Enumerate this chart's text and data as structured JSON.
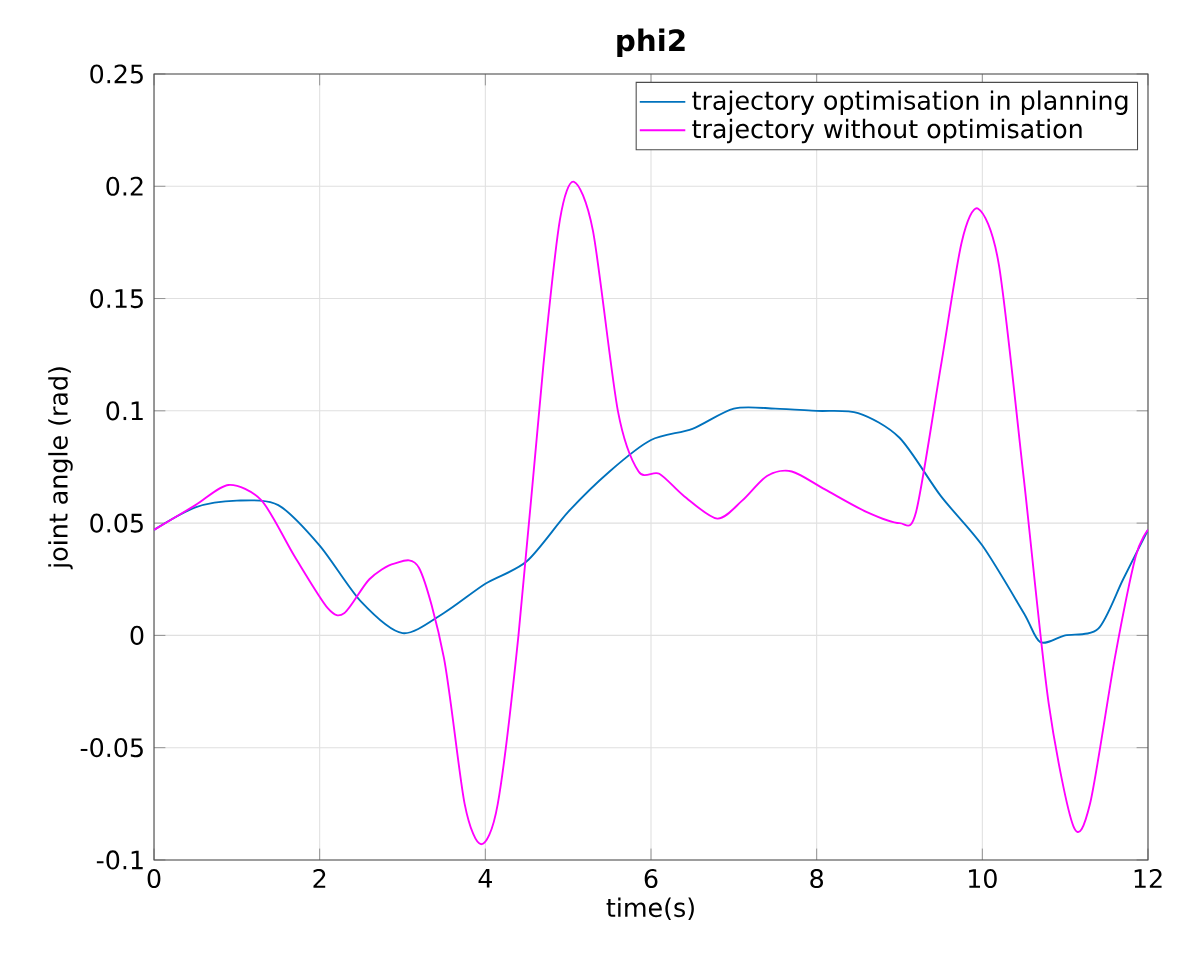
{
  "chart_data": {
    "type": "line",
    "title": "phi2",
    "xlabel": "time(s)",
    "ylabel": "joint angle (rad)",
    "xlim": [
      0,
      12
    ],
    "ylim": [
      -0.1,
      0.25
    ],
    "xticks": [
      0,
      2,
      4,
      6,
      8,
      10,
      12
    ],
    "yticks": [
      -0.1,
      -0.05,
      0,
      0.05,
      0.1,
      0.15,
      0.2,
      0.25
    ],
    "grid": true,
    "legend": "top right",
    "series": [
      {
        "name": "trajectory optimisation in planning",
        "color": "#0072bd",
        "x": [
          0,
          0.5,
          1.0,
          1.5,
          2.0,
          2.5,
          3.0,
          3.5,
          4.0,
          4.5,
          5.0,
          5.5,
          6.0,
          6.5,
          7.0,
          7.5,
          8.0,
          8.5,
          9.0,
          9.5,
          10.0,
          10.5,
          10.7,
          11.0,
          11.4,
          11.7,
          12
        ],
        "values": [
          0.047,
          0.057,
          0.06,
          0.058,
          0.04,
          0.015,
          0.001,
          0.01,
          0.023,
          0.033,
          0.055,
          0.073,
          0.087,
          0.092,
          0.101,
          0.101,
          0.1,
          0.099,
          0.088,
          0.062,
          0.04,
          0.01,
          -0.003,
          0.0,
          0.003,
          0.025,
          0.047
        ]
      },
      {
        "name": "trajectory without optimisation",
        "color": "#ff00ff",
        "x": [
          0,
          0.5,
          0.9,
          1.3,
          1.7,
          2.1,
          2.3,
          2.6,
          2.9,
          3.2,
          3.5,
          3.75,
          3.95,
          4.15,
          4.4,
          4.7,
          4.9,
          5.07,
          5.3,
          5.6,
          5.85,
          6.1,
          6.4,
          6.8,
          7.1,
          7.4,
          7.7,
          8.1,
          8.6,
          9.0,
          9.2,
          9.5,
          9.75,
          9.95,
          10.2,
          10.5,
          10.8,
          11.1,
          11.3,
          11.6,
          11.85,
          12
        ],
        "values": [
          0.047,
          0.058,
          0.067,
          0.06,
          0.035,
          0.012,
          0.01,
          0.025,
          0.032,
          0.03,
          -0.01,
          -0.075,
          -0.093,
          -0.075,
          0.0,
          0.12,
          0.185,
          0.202,
          0.18,
          0.1,
          0.073,
          0.072,
          0.062,
          0.052,
          0.06,
          0.071,
          0.073,
          0.065,
          0.055,
          0.05,
          0.055,
          0.12,
          0.175,
          0.19,
          0.165,
          0.07,
          -0.03,
          -0.085,
          -0.075,
          -0.01,
          0.035,
          0.047
        ]
      }
    ]
  }
}
